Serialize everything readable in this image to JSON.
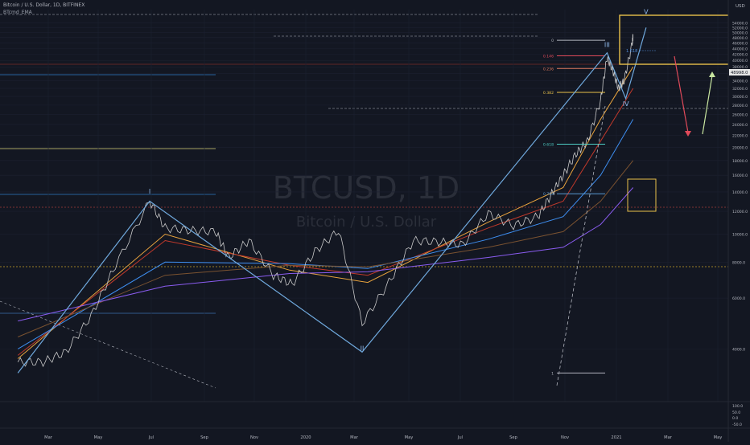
{
  "header": {
    "symbol_line": "Bitcoin / U.S. Dollar, 1D, BITFINEX",
    "indicator_line": "BTcmd_EMA"
  },
  "watermark": {
    "ticker": "BTCUSD, 1D",
    "name": "Bitcoin / U.S. Dollar"
  },
  "chart_data": {
    "type": "line",
    "title": "BTCUSD, 1D",
    "currency": "USD",
    "y_scale": "log",
    "ylim": [
      2800,
      60000
    ],
    "x_ticks": [
      "Mar",
      "May",
      "Jul",
      "Sep",
      "Nov",
      "2020",
      "Mar",
      "May",
      "Jul",
      "Sep",
      "Nov",
      "2021",
      "Mar",
      "May"
    ],
    "y_ticks": [
      4000,
      6000,
      8000,
      10000,
      12000,
      14000,
      16000,
      18000,
      20000,
      22000,
      24000,
      26000,
      28000,
      30000,
      32000,
      34000,
      36000,
      38000,
      40000,
      42000,
      44000,
      46000,
      48000,
      50000,
      52000,
      54000
    ],
    "y_tick_labels": [
      "4000.0",
      "6000.0",
      "8000.0",
      "10000.0",
      "12000.0",
      "14000.0",
      "16000.0",
      "18000.0",
      "20000.0",
      "22000.0",
      "24000.0",
      "26000.0",
      "28000.0",
      "30000.0",
      "32000.0",
      "34000.0",
      "36000.0",
      "38000.0",
      "40000.0",
      "42000.0",
      "44000.0",
      "46000.0",
      "48000.0",
      "50000.0",
      "52000.0",
      "54000.0"
    ],
    "last_price": "48998.0",
    "lower_pane_ticks": [
      "100.0",
      "50.0",
      "0.0",
      "-50.0"
    ],
    "series": [
      {
        "name": "BTCUSD",
        "color": "#c9c9c9",
        "points": [
          [
            "2019-01-15",
            3600
          ],
          [
            "2019-02-15",
            3600
          ],
          [
            "2019-03-15",
            3900
          ],
          [
            "2019-04-15",
            5200
          ],
          [
            "2019-05-15",
            7800
          ],
          [
            "2019-06-26",
            13000
          ],
          [
            "2019-07-15",
            10500
          ],
          [
            "2019-08-15",
            10300
          ],
          [
            "2019-09-15",
            10200
          ],
          [
            "2019-10-01",
            8300
          ],
          [
            "2019-10-26",
            9500
          ],
          [
            "2019-11-25",
            7200
          ],
          [
            "2019-12-18",
            6700
          ],
          [
            "2020-01-15",
            8700
          ],
          [
            "2020-02-13",
            10300
          ],
          [
            "2020-03-13",
            4900
          ],
          [
            "2020-04-15",
            6800
          ],
          [
            "2020-05-15",
            9500
          ],
          [
            "2020-06-15",
            9400
          ],
          [
            "2020-07-15",
            9200
          ],
          [
            "2020-08-15",
            11800
          ],
          [
            "2020-09-15",
            10700
          ],
          [
            "2020-10-15",
            11500
          ],
          [
            "2020-11-01",
            13800
          ],
          [
            "2020-11-15",
            16000
          ],
          [
            "2020-12-01",
            19000
          ],
          [
            "2020-12-15",
            21000
          ],
          [
            "2020-12-31",
            29000
          ],
          [
            "2021-01-08",
            41000
          ],
          [
            "2021-01-15",
            37000
          ],
          [
            "2021-01-22",
            32000
          ],
          [
            "2021-01-29",
            34000
          ],
          [
            "2021-02-08",
            46000
          ],
          [
            "2021-02-09",
            48998
          ]
        ]
      }
    ],
    "emas": [
      {
        "color": "#e8a33d",
        "points": [
          [
            "2019-01-15",
            3700
          ],
          [
            "2019-07-15",
            10000
          ],
          [
            "2019-12-15",
            7500
          ],
          [
            "2020-03-20",
            6800
          ],
          [
            "2020-08-15",
            11000
          ],
          [
            "2020-11-15",
            14500
          ],
          [
            "2020-12-31",
            25000
          ],
          [
            "2021-02-09",
            38000
          ]
        ]
      },
      {
        "color": "#c0392b",
        "points": [
          [
            "2019-01-15",
            3800
          ],
          [
            "2019-07-15",
            9500
          ],
          [
            "2019-12-15",
            7800
          ],
          [
            "2020-03-20",
            7200
          ],
          [
            "2020-08-15",
            10500
          ],
          [
            "2020-11-15",
            13000
          ],
          [
            "2020-12-31",
            21000
          ],
          [
            "2021-02-09",
            32000
          ]
        ]
      },
      {
        "color": "#3e8ef0",
        "points": [
          [
            "2019-01-15",
            4000
          ],
          [
            "2019-07-15",
            8000
          ],
          [
            "2019-12-15",
            7900
          ],
          [
            "2020-03-20",
            7600
          ],
          [
            "2020-08-15",
            9600
          ],
          [
            "2020-11-15",
            11500
          ],
          [
            "2020-12-31",
            16000
          ],
          [
            "2021-02-09",
            25000
          ]
        ]
      },
      {
        "color": "#7a5230",
        "points": [
          [
            "2019-01-15",
            4400
          ],
          [
            "2019-07-15",
            7200
          ],
          [
            "2019-12-15",
            7800
          ],
          [
            "2020-03-20",
            7700
          ],
          [
            "2020-08-15",
            9000
          ],
          [
            "2020-11-15",
            10200
          ],
          [
            "2020-12-31",
            13000
          ],
          [
            "2021-02-09",
            18000
          ]
        ]
      },
      {
        "color": "#8a5cf0",
        "points": [
          [
            "2019-01-15",
            5000
          ],
          [
            "2019-07-15",
            6600
          ],
          [
            "2019-12-15",
            7300
          ],
          [
            "2020-03-20",
            7400
          ],
          [
            "2020-08-15",
            8300
          ],
          [
            "2020-11-15",
            9000
          ],
          [
            "2020-12-31",
            10800
          ],
          [
            "2021-02-09",
            14500
          ]
        ]
      }
    ],
    "wave_labels": [
      {
        "text": "I",
        "date": "2019-06-26",
        "price": 13800
      },
      {
        "text": "II",
        "date": "2020-03-13",
        "price": 3950
      },
      {
        "text": "III",
        "date": "2021-01-08",
        "price": 44500
      },
      {
        "text": "IV",
        "date": "2021-01-31",
        "price": 27800
      },
      {
        "text": "V",
        "date": "2021-02-25",
        "price": 58000
      }
    ],
    "fib_levels": [
      {
        "label": "0",
        "price": 47000,
        "color": "#b2b5be"
      },
      {
        "label": "0.146",
        "price": 41500,
        "color": "#e04a5a"
      },
      {
        "label": "0.236",
        "price": 37500,
        "color": "#e07a5f"
      },
      {
        "label": "0.382",
        "price": 31000,
        "color": "#e8c04a"
      },
      {
        "label": "0.618",
        "price": 20500,
        "color": "#4ecdc4"
      },
      {
        "label": "0.764",
        "price": 13800,
        "color": "#5a9bd5"
      },
      {
        "label": "1",
        "price": 3300,
        "color": "#b2b5be"
      }
    ],
    "box_label": "1.618"
  }
}
